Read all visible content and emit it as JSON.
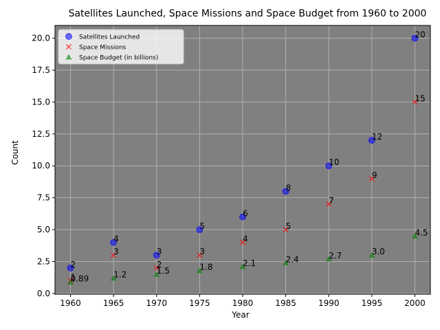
{
  "chart_data": {
    "type": "scatter",
    "title": "Satellites Launched, Space Missions and Space Budget from 1960 to 2000",
    "xlabel": "Year",
    "ylabel": "Count",
    "x": [
      1960,
      1965,
      1970,
      1975,
      1980,
      1985,
      1990,
      1995,
      2000
    ],
    "xlim": [
      1958.2,
      2001.8
    ],
    "ylim": [
      -0.06,
      21.0
    ],
    "xticks": [
      1960,
      1965,
      1970,
      1975,
      1980,
      1985,
      1990,
      1995,
      2000
    ],
    "yticks": [
      0.0,
      2.5,
      5.0,
      7.5,
      10.0,
      12.5,
      15.0,
      17.5,
      20.0
    ],
    "ytick_labels": [
      "0.0",
      "2.5",
      "5.0",
      "7.5",
      "10.0",
      "12.5",
      "15.0",
      "17.5",
      "20.0"
    ],
    "grid": true,
    "background_color": "#808080",
    "legend_position": "top-left",
    "series": [
      {
        "name": "Satellites Launched",
        "marker": "circle",
        "color": "#0000ff",
        "values": [
          2,
          4,
          3,
          5,
          6,
          8,
          10,
          12,
          20
        ],
        "labels": [
          "2",
          "4",
          "3",
          "5",
          "6",
          "8",
          "10",
          "12",
          "20"
        ]
      },
      {
        "name": "Space Missions",
        "marker": "x",
        "color": "#ff0000",
        "values": [
          1,
          3,
          2,
          3,
          4,
          5,
          7,
          9,
          15
        ],
        "labels": [
          "1",
          "3",
          "2",
          "3",
          "4",
          "5",
          "7",
          "9",
          "15"
        ]
      },
      {
        "name": "Space Budget (in billions)",
        "marker": "triangle",
        "color": "#008000",
        "values": [
          0.89,
          1.2,
          1.5,
          1.8,
          2.1,
          2.4,
          2.7,
          3.0,
          4.5
        ],
        "labels": [
          "0.89",
          "1.2",
          "1.5",
          "1.8",
          "2.1",
          "2.4",
          "2.7",
          "3.0",
          "4.5"
        ]
      }
    ]
  }
}
